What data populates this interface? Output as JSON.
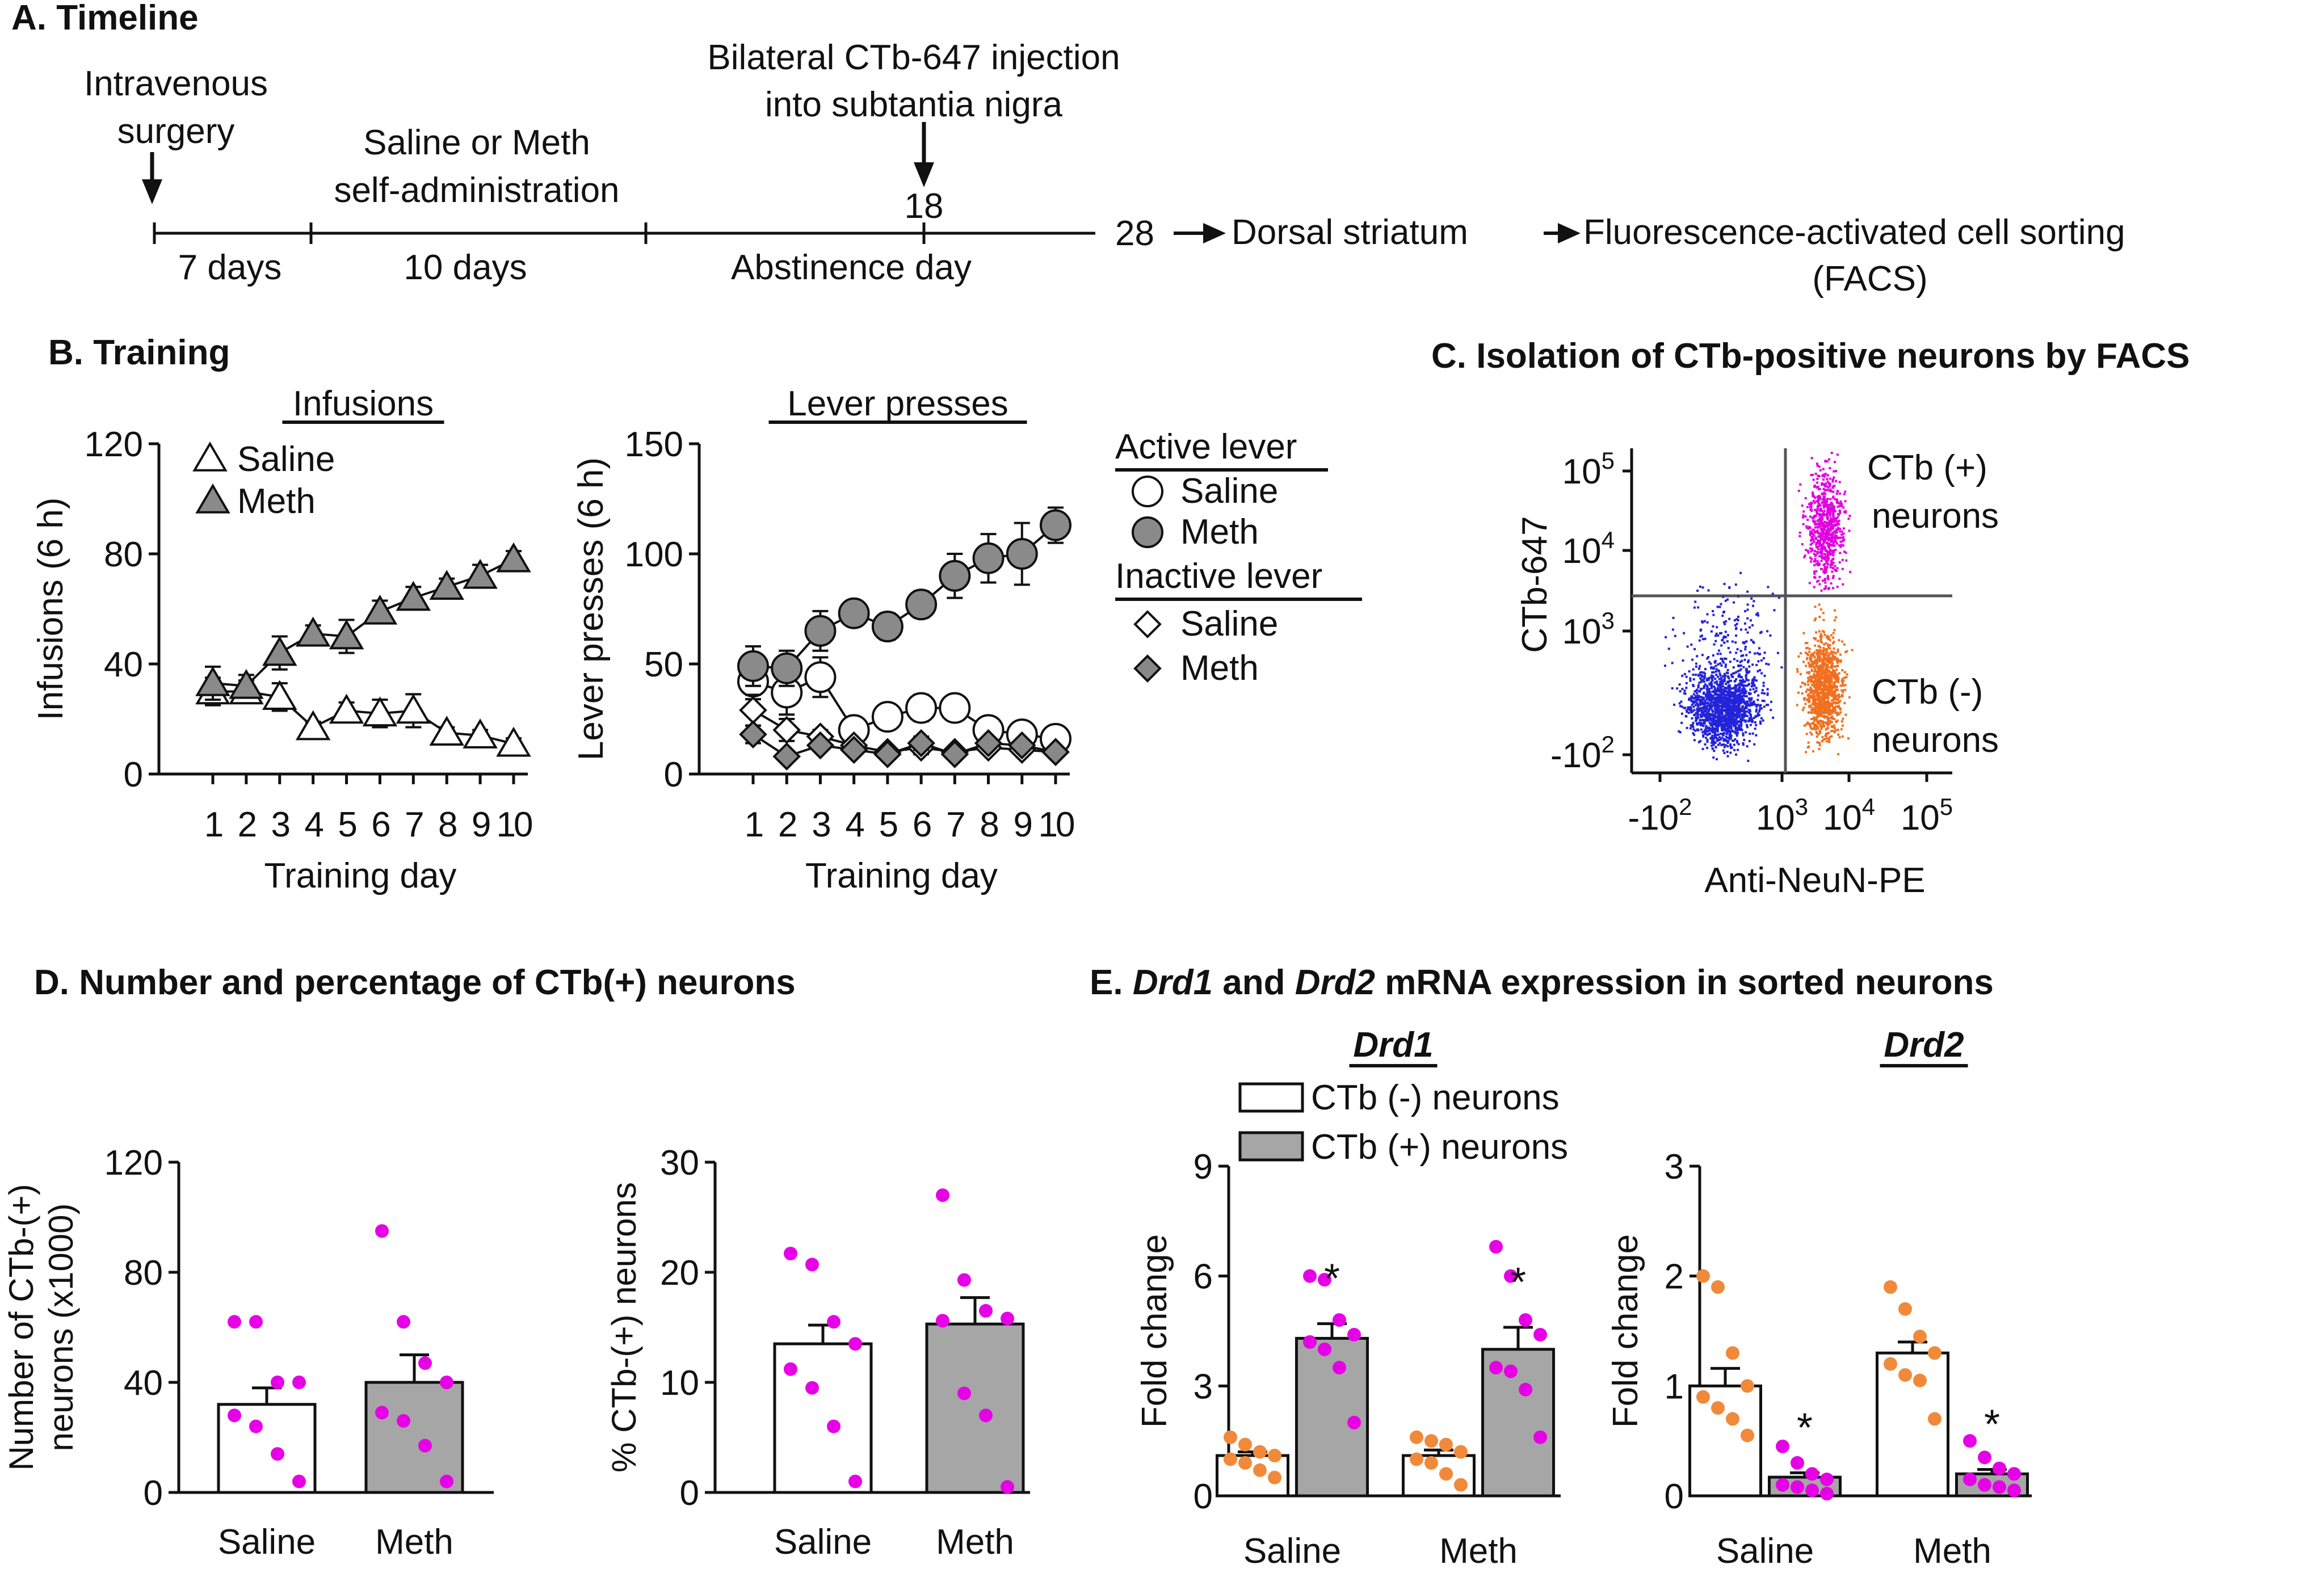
{
  "colors": {
    "ink": "#111111",
    "meth_fill": "#8a8a8a",
    "bar_gray": "#a6a6a6",
    "dots_magenta": "#e600e6",
    "dots_orange": "#f08a3a",
    "facs_blue": "#2323d9",
    "facs_magenta": "#e000e0",
    "facs_orange": "#f07020"
  },
  "panel_a": {
    "title": "A. Timeline",
    "surgery_label": [
      "Intravenous",
      "surgery"
    ],
    "selfadmin_label": [
      "Saline or Meth",
      "self-administration"
    ],
    "injection_label": [
      "Bilateral CTb-647 injection",
      "into subtantia nigra"
    ],
    "injection_day": "18",
    "end_day": "28",
    "seg1": "7 days",
    "seg2": "10 days",
    "seg3": "Abstinence day",
    "dest1": "Dorsal striatum",
    "dest2": "Fluorescence-activated cell sorting",
    "dest3": "(FACS)"
  },
  "panel_b": {
    "title": "B. Training"
  },
  "panel_c": {
    "title": "C. Isolation of CTb-positive neurons by FACS",
    "ylabel": "CTb-647",
    "xlabel": "Anti-NeuN-PE",
    "yticks": [
      {
        "b": "10",
        "e": "5"
      },
      {
        "b": "10",
        "e": "4"
      },
      {
        "b": "10",
        "e": "3"
      },
      {
        "b": "-10",
        "e": "2"
      }
    ],
    "xticks": [
      {
        "b": "-10",
        "e": "2"
      },
      {
        "b": "10",
        "e": "3"
      },
      {
        "b": "10",
        "e": "4"
      },
      {
        "b": "10",
        "e": "5"
      }
    ],
    "pos_label": [
      "CTb (+)",
      "neurons"
    ],
    "neg_label": [
      "CTb (-)",
      "neurons"
    ]
  },
  "panel_d": {
    "title": "D. Number and percentage of CTb(+) neurons"
  },
  "panel_e": {
    "title_parts": [
      "E. ",
      "Drd1",
      " and ",
      "Drd2",
      " mRNA expression in sorted neurons"
    ],
    "legend_neg": "CTb (-) neurons",
    "legend_pos": "CTb (+) neurons"
  },
  "chart_data": [
    {
      "id": "B1",
      "type": "line",
      "title": "Infusions",
      "xlabel": "Training day",
      "ylabel": "Infusions (6 h)",
      "ylim": [
        0,
        120
      ],
      "yticks": [
        0,
        40,
        80,
        120
      ],
      "x": [
        1,
        2,
        3,
        4,
        5,
        6,
        7,
        8,
        9,
        10
      ],
      "legend": [
        "Saline",
        "Meth"
      ],
      "series": [
        {
          "name": "Saline",
          "marker": "triangle-open",
          "values": [
            30,
            30,
            28,
            17,
            23,
            22,
            23,
            15,
            14,
            11
          ],
          "err": [
            5,
            4,
            5,
            2,
            3,
            5,
            6,
            2,
            2,
            2
          ]
        },
        {
          "name": "Meth",
          "marker": "triangle-filled",
          "values": [
            33,
            32,
            44,
            51,
            50,
            59,
            64,
            68,
            72,
            78
          ],
          "err": [
            6,
            4,
            6,
            3,
            6,
            4,
            4,
            3,
            4,
            3
          ]
        }
      ]
    },
    {
      "id": "B2",
      "type": "line",
      "title": "Lever presses",
      "xlabel": "Training day",
      "ylabel": "Lever presses (6 h)",
      "ylim": [
        0,
        150
      ],
      "yticks": [
        0,
        50,
        100,
        150
      ],
      "x": [
        1,
        2,
        3,
        4,
        5,
        6,
        7,
        8,
        9,
        10
      ],
      "legend_groups": [
        "Active lever",
        "Inactive lever"
      ],
      "legend": [
        "Saline",
        "Meth",
        "Saline",
        "Meth"
      ],
      "series": [
        {
          "name": "Active Saline",
          "marker": "circle-open",
          "values": [
            42,
            37,
            44,
            20,
            26,
            30,
            30,
            20,
            18,
            16
          ],
          "err": [
            8,
            10,
            9,
            3,
            4,
            6,
            5,
            3,
            3,
            3
          ]
        },
        {
          "name": "Active Meth",
          "marker": "circle-filled",
          "values": [
            49,
            48,
            65,
            73,
            67,
            77,
            90,
            98,
            100,
            113
          ],
          "err": [
            9,
            8,
            9,
            4,
            6,
            6,
            10,
            11,
            14,
            8
          ]
        },
        {
          "name": "Inactive Saline",
          "marker": "diamond-open",
          "values": [
            29,
            20,
            17,
            13,
            10,
            12,
            10,
            12,
            11,
            10
          ],
          "err": [
            7,
            5,
            3,
            2,
            2,
            3,
            2,
            2,
            2,
            2
          ]
        },
        {
          "name": "Inactive Meth",
          "marker": "diamond-filled",
          "values": [
            18,
            8,
            13,
            11,
            9,
            14,
            9,
            14,
            13,
            10
          ],
          "err": [
            4,
            2,
            2,
            2,
            2,
            3,
            2,
            2,
            2,
            2
          ]
        }
      ]
    },
    {
      "id": "D1",
      "type": "bar",
      "ylabel": "Number of CTb-(+) neurons (x1000)",
      "ylabel_lines": [
        "Number of CTb-(+)",
        "neurons (x1000)"
      ],
      "ylim": [
        0,
        120
      ],
      "yticks": [
        0,
        40,
        80,
        120
      ],
      "categories": [
        "Saline",
        "Meth"
      ],
      "values": [
        32,
        40
      ],
      "err": [
        6,
        10
      ],
      "points": [
        [
          62,
          62,
          40,
          40,
          28,
          24,
          14,
          4
        ],
        [
          95,
          62,
          47,
          40,
          29,
          26,
          17,
          4
        ]
      ]
    },
    {
      "id": "D2",
      "type": "bar",
      "ylabel": "% CTb-(+) neurons",
      "ylim": [
        0,
        30
      ],
      "yticks": [
        0,
        10,
        20,
        30
      ],
      "categories": [
        "Saline",
        "Meth"
      ],
      "values": [
        13.5,
        15.3
      ],
      "err": [
        1.7,
        2.4
      ],
      "points": [
        [
          21.7,
          20.7,
          15.5,
          13.5,
          11.2,
          9.5,
          6.0,
          1.0
        ],
        [
          27.0,
          19.3,
          16.5,
          15.8,
          15.6,
          9.0,
          7.0,
          0.5
        ]
      ]
    },
    {
      "id": "E1",
      "type": "bar",
      "title": "Drd1",
      "ylabel": "Fold change",
      "ylim": [
        0,
        9
      ],
      "yticks": [
        0,
        3,
        6,
        9
      ],
      "categories": [
        "Saline",
        "Meth"
      ],
      "series": [
        {
          "name": "CTb (-) neurons",
          "values": [
            1.1,
            1.1
          ],
          "err": [
            0.1,
            0.15
          ],
          "points": [
            [
              1.6,
              1.4,
              1.2,
              1.1,
              1.0,
              0.9,
              0.7,
              0.5
            ],
            [
              1.6,
              1.5,
              1.4,
              1.2,
              1.0,
              0.9,
              0.6,
              0.3
            ]
          ]
        },
        {
          "name": "CTb (+) neurons",
          "values": [
            4.3,
            4.0
          ],
          "err": [
            0.4,
            0.6
          ],
          "points": [
            [
              6.0,
              5.9,
              4.8,
              4.4,
              4.2,
              4.0,
              3.5,
              2.0
            ],
            [
              6.8,
              6.0,
              4.8,
              4.4,
              3.5,
              3.4,
              2.9,
              1.6
            ]
          ]
        }
      ],
      "significance": [
        "*",
        "*"
      ]
    },
    {
      "id": "E2",
      "type": "bar",
      "title": "Drd2",
      "ylabel": "Fold change",
      "ylim": [
        0,
        3
      ],
      "yticks": [
        0,
        1,
        2,
        3
      ],
      "categories": [
        "Saline",
        "Meth"
      ],
      "series": [
        {
          "name": "CTb (-) neurons",
          "values": [
            1.0,
            1.3
          ],
          "err": [
            0.16,
            0.1
          ],
          "points": [
            [
              2.0,
              1.9,
              1.3,
              1.0,
              0.9,
              0.8,
              0.7,
              0.55
            ],
            [
              1.9,
              1.7,
              1.45,
              1.3,
              1.2,
              1.1,
              1.05,
              0.7
            ]
          ]
        },
        {
          "name": "CTb (+) neurons",
          "values": [
            0.17,
            0.2
          ],
          "err": [
            0.04,
            0.04
          ],
          "points": [
            [
              0.45,
              0.3,
              0.2,
              0.15,
              0.1,
              0.08,
              0.05,
              0.02
            ],
            [
              0.5,
              0.35,
              0.25,
              0.2,
              0.15,
              0.1,
              0.08,
              0.05
            ]
          ]
        }
      ],
      "significance": [
        "*",
        "*"
      ]
    }
  ]
}
